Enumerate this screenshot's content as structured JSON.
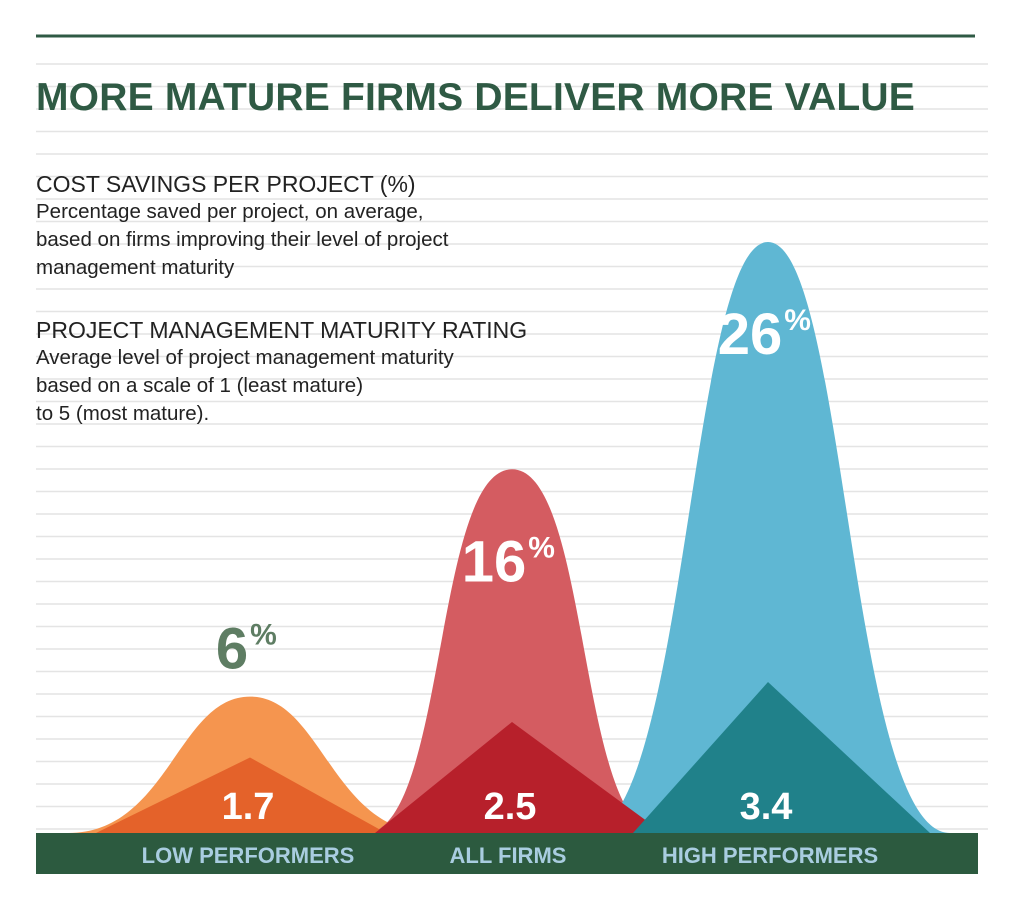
{
  "title": "MORE MATURE FIRMS DELIVER MORE VALUE",
  "legend": [
    {
      "heading": "COST SAVINGS PER PROJECT (%)",
      "lines": [
        "Percentage saved per project, on average,",
        "based on firms improving their level of project",
        "management maturity"
      ]
    },
    {
      "heading": "PROJECT MANAGEMENT MATURITY RATING",
      "lines": [
        "Average level of project management maturity",
        "based on a scale of 1 (least mature)",
        "to 5 (most mature)."
      ]
    }
  ],
  "colors": {
    "title": "#2f5a44",
    "band": "#2c5a3f",
    "band_text": "#a9cde0",
    "lines": "#e4e4e4",
    "low_curve": "#f5954f",
    "low_triangle": "#e4622a",
    "low_label": "#5e7d63",
    "all_curve": "#d45c61",
    "all_triangle": "#b7202b",
    "high_curve": "#5fb7d3",
    "high_triangle": "#20818a"
  },
  "chart_data": {
    "type": "area",
    "categories": [
      "LOW PERFORMERS",
      "ALL FIRMS",
      "HIGH PERFORMERS"
    ],
    "series": [
      {
        "name": "COST SAVINGS PER PROJECT (%)",
        "values": [
          6,
          16,
          26
        ],
        "labels": [
          "6",
          "16",
          "26"
        ],
        "unit": "%"
      },
      {
        "name": "PROJECT MANAGEMENT MATURITY RATING",
        "values": [
          1.7,
          2.5,
          3.4
        ],
        "labels": [
          "1.7",
          "2.5",
          "3.4"
        ]
      }
    ],
    "grid": true
  }
}
